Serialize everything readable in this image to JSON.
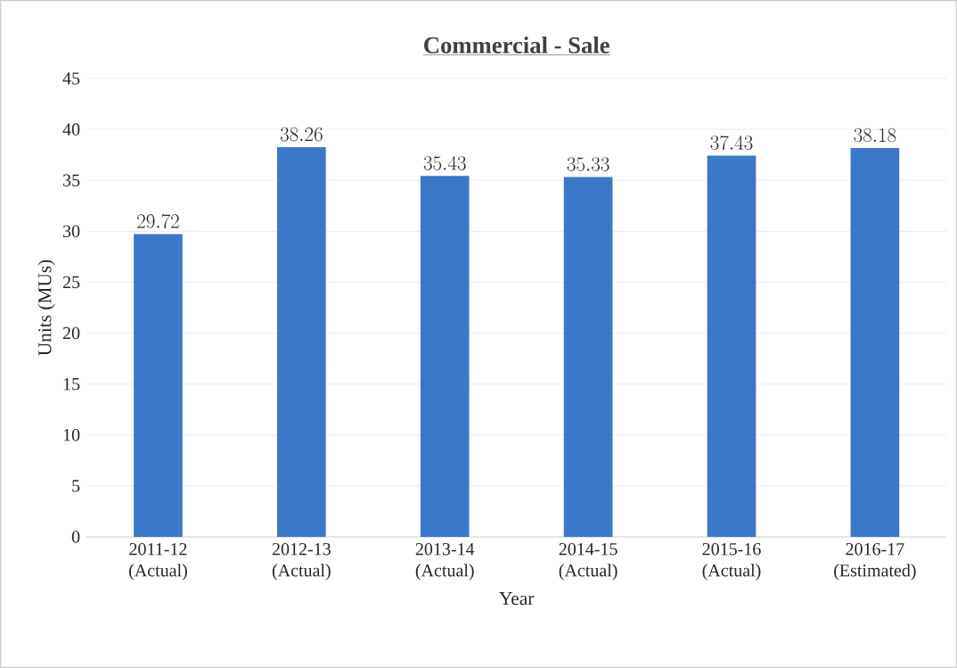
{
  "chart_data": {
    "type": "bar",
    "title": "Commercial - Sale",
    "xlabel": "Year",
    "ylabel": "Units (MUs)",
    "categories": [
      "2011-12 (Actual)",
      "2012-13 (Actual)",
      "2013-14 (Actual)",
      "2014-15 (Actual)",
      "2015-16 (Actual)",
      "2016-17 (Estimated)"
    ],
    "values": [
      29.72,
      38.26,
      35.43,
      35.33,
      37.43,
      38.18
    ],
    "color": "#3b78c9",
    "ylim": [
      0,
      45
    ],
    "yticks": [
      0,
      5,
      10,
      15,
      20,
      25,
      30,
      35,
      40,
      45
    ],
    "grid": "y",
    "data_labels": true
  }
}
